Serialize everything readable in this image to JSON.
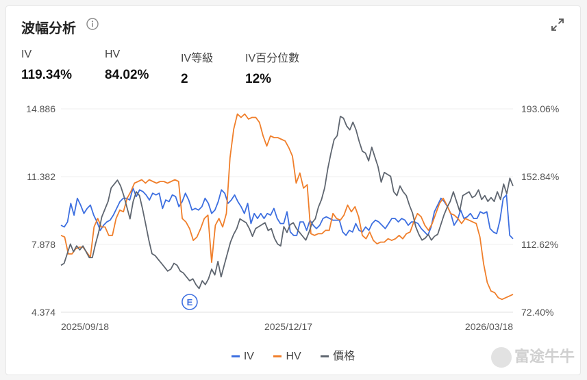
{
  "title": "波幅分析",
  "icons": {
    "info": "info-icon",
    "expand": "expand-icon"
  },
  "stats": [
    {
      "label": "IV",
      "value": "119.34%"
    },
    {
      "label": "HV",
      "value": "84.02%"
    },
    {
      "label": "IV等級",
      "value": "2"
    },
    {
      "label": "IV百分位數",
      "value": "12%"
    }
  ],
  "watermark": "富途牛牛",
  "colors": {
    "iv": "#3d6fe0",
    "hv": "#f07f2b",
    "price": "#5f6670"
  },
  "chart_data": {
    "type": "line",
    "left_axis": {
      "ticks": [
        "14.886",
        "11.382",
        "7.878",
        "4.374"
      ],
      "range": [
        4.374,
        14.886
      ]
    },
    "right_axis": {
      "ticks": [
        "193.06%",
        "152.84%",
        "112.62%",
        "72.40%"
      ],
      "range": [
        72.4,
        193.06
      ]
    },
    "x_ticks": [
      "2025/09/18",
      "2025/12/17",
      "2026/03/18"
    ],
    "grid": "horizontal",
    "legend_position": "bottom",
    "event_marker": {
      "label": "E",
      "index": 41
    },
    "series": [
      {
        "name": "IV",
        "axis": "right",
        "color": "#3d6fe0",
        "values": [
          124,
          123,
          126,
          137,
          130,
          140,
          136,
          131,
          134,
          136,
          130,
          126,
          121,
          124,
          126,
          127,
          130,
          134,
          138,
          140,
          140,
          139,
          146,
          141,
          145,
          144,
          142,
          139,
          143,
          142,
          143,
          134,
          139,
          138,
          142,
          141,
          135,
          138,
          143,
          139,
          133,
          134,
          133,
          135,
          140,
          137,
          131,
          133,
          138,
          145,
          143,
          137,
          139,
          142,
          138,
          135,
          131,
          137,
          125,
          131,
          128,
          131,
          128,
          131,
          130,
          134,
          128,
          125,
          125,
          132,
          120,
          118,
          118,
          126,
          126,
          121,
          127,
          124,
          122,
          124,
          128,
          129,
          128,
          127,
          127,
          127,
          120,
          118,
          121,
          120,
          125,
          121,
          120,
          123,
          121,
          125,
          127,
          126,
          124,
          122,
          125,
          128,
          128,
          126,
          128,
          127,
          124,
          126,
          126,
          125,
          122,
          120,
          118,
          123,
          132,
          136,
          140,
          138,
          135,
          131,
          124,
          127,
          133,
          128,
          129,
          131,
          128,
          128,
          132,
          131,
          132,
          122,
          120,
          119,
          127,
          140,
          142,
          118,
          116
        ]
      },
      {
        "name": "HV",
        "axis": "right",
        "color": "#f07f2b",
        "values": [
          118,
          117,
          107,
          107,
          110,
          111,
          111,
          108,
          105,
          123,
          128,
          123,
          123,
          118,
          118,
          128,
          133,
          132,
          140,
          144,
          149,
          150,
          151,
          149,
          151,
          150,
          149,
          150,
          150,
          149,
          150,
          151,
          150,
          128,
          126,
          122,
          115,
          117,
          122,
          128,
          130,
          102,
          124,
          128,
          123,
          131,
          164,
          181,
          190,
          188,
          190,
          187,
          188,
          188,
          185,
          177,
          171,
          177,
          176,
          176,
          175,
          174,
          170,
          165,
          149,
          155,
          146,
          148,
          119,
          118,
          119,
          119,
          121,
          121,
          131,
          128,
          127,
          130,
          136,
          132,
          135,
          129,
          118,
          116,
          120,
          115,
          113,
          114,
          114,
          116,
          115,
          116,
          118,
          116,
          119,
          120,
          126,
          131,
          129,
          124,
          121,
          125,
          131,
          137,
          140,
          136,
          131,
          130,
          128,
          125,
          128,
          127,
          126,
          125,
          117,
          101,
          90,
          85,
          84,
          81,
          80,
          81,
          82,
          83
        ]
      },
      {
        "name": "價格",
        "axis": "left",
        "color": "#5f6670",
        "values": [
          6.8,
          6.9,
          7.4,
          7.9,
          7.5,
          7.8,
          7.6,
          7.8,
          7.5,
          7.2,
          7.2,
          7.9,
          8.5,
          9.3,
          9.7,
          10.1,
          10.8,
          11.0,
          11.2,
          10.9,
          10.4,
          9.8,
          9.2,
          10.1,
          10.6,
          10.4,
          9.7,
          8.9,
          8.1,
          7.4,
          7.3,
          7.1,
          6.9,
          6.7,
          6.5,
          6.6,
          6.9,
          6.8,
          6.5,
          6.4,
          6.2,
          6.0,
          6.1,
          5.8,
          5.6,
          6.0,
          5.8,
          6.1,
          6.6,
          6.3,
          7.0,
          6.2,
          6.8,
          7.4,
          8.0,
          8.4,
          8.7,
          9.2,
          9.1,
          9.0,
          8.7,
          8.3,
          8.7,
          8.8,
          8.9,
          9.0,
          8.6,
          8.7,
          8.2,
          7.9,
          7.8,
          8.8,
          8.5,
          8.9,
          9.0,
          8.7,
          8.5,
          8.3,
          8.1,
          8.5,
          9.0,
          9.2,
          9.8,
          10.2,
          10.8,
          11.8,
          12.6,
          13.3,
          13.5,
          14.5,
          14.4,
          14.0,
          13.8,
          14.2,
          13.8,
          13.2,
          12.7,
          12.6,
          12.2,
          12.9,
          12.4,
          11.9,
          11.1,
          11.6,
          11.5,
          11.4,
          10.6,
          10.4,
          10.9,
          10.6,
          10.4,
          9.9,
          9.5,
          8.8,
          8.4,
          8.1,
          8.2,
          8.4,
          8.1,
          8.3,
          8.4,
          8.9,
          9.4,
          9.8,
          10.1,
          10.6,
          10.1,
          9.6,
          10.4,
          10.5,
          10.6,
          10.3,
          10.4,
          10.7,
          10.2,
          10.4,
          10.1,
          10.3,
          10.1,
          10.6,
          10.2,
          11.0,
          10.5,
          11.3,
          10.9
        ]
      }
    ]
  }
}
